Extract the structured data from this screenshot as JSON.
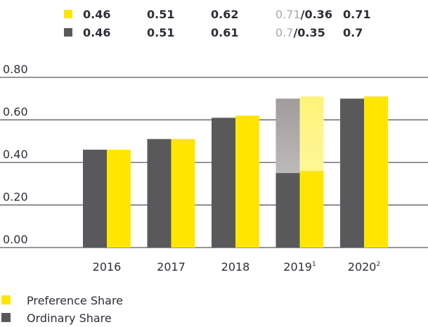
{
  "chart_data": {
    "type": "bar",
    "categories": [
      "2016",
      "2017",
      "2018",
      "2019",
      "2020"
    ],
    "category_notes": [
      null,
      null,
      null,
      "1",
      "2"
    ],
    "series": [
      {
        "name": "Preference Share",
        "color": "#ffe600",
        "faded_color": "#fffa9c",
        "values": [
          0.46,
          0.51,
          0.62,
          0.36,
          0.71
        ],
        "upper_values": [
          null,
          null,
          null,
          0.71,
          null
        ]
      },
      {
        "name": "Ordinary Share",
        "color": "#59595b",
        "faded_color": "#b8b4b4",
        "values": [
          0.46,
          0.51,
          0.61,
          0.35,
          0.7
        ],
        "upper_values": [
          null,
          null,
          null,
          0.7,
          null
        ]
      }
    ],
    "value_label_separator": "/",
    "ylim": [
      0,
      0.8
    ],
    "yticks": [
      {
        "value": 0,
        "label": "0.00"
      },
      {
        "value": 0.2,
        "label": "0.20"
      },
      {
        "value": 0.4,
        "label": "0.40"
      },
      {
        "value": 0.6,
        "label": "0.60"
      },
      {
        "value": 0.8,
        "label": "0.80"
      }
    ],
    "grid": true
  }
}
